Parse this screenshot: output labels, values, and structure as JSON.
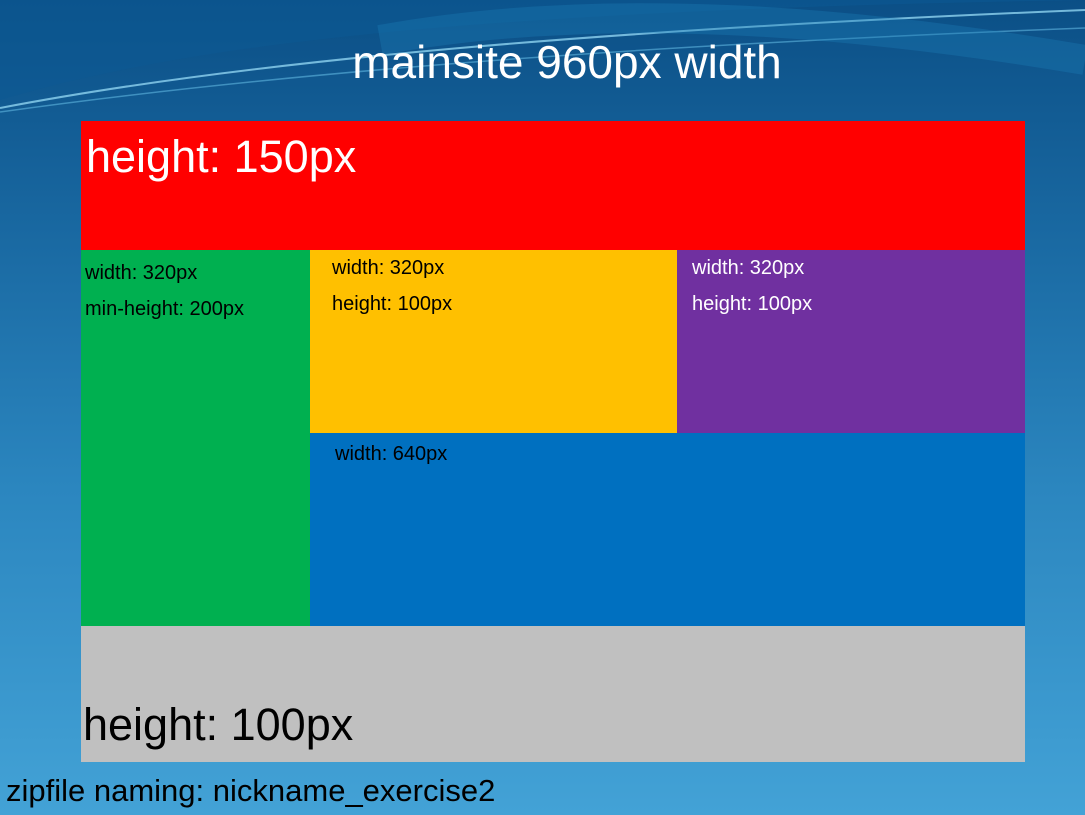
{
  "slide": {
    "title": "mainsite 960px width",
    "note": "zipfile naming: nickname_exercise2"
  },
  "blocks": {
    "header": {
      "label": "height: 150px",
      "color": "#ff0000"
    },
    "left": {
      "line1": "width: 320px",
      "line2": "min-height: 200px",
      "color": "#00b050"
    },
    "middle": {
      "line1": "width: 320px",
      "line2": "height: 100px",
      "color": "#ffc000"
    },
    "right": {
      "line1": "width: 320px",
      "line2": "height: 100px",
      "color": "#7030a0"
    },
    "content": {
      "label": "width: 640px",
      "color": "#0070c0"
    },
    "footer": {
      "label": "height: 100px",
      "color": "#c0c0c0"
    }
  }
}
